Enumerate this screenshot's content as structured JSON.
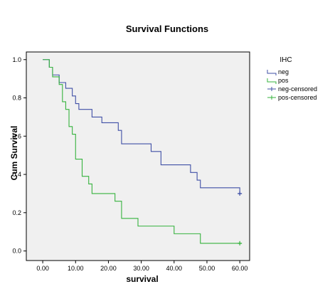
{
  "chart_data": {
    "type": "line",
    "step": true,
    "title": "Survival Functions",
    "xlabel": "survival",
    "ylabel": "Cum Survival",
    "xlim": [
      -5,
      63
    ],
    "ylim": [
      -0.05,
      1.04
    ],
    "xticks": [
      0,
      10,
      20,
      30,
      40,
      50,
      60
    ],
    "xtick_labels": [
      "0.00",
      "10.00",
      "20.00",
      "30.00",
      "40.00",
      "50.00",
      "60.00"
    ],
    "yticks": [
      0,
      0.2,
      0.4,
      0.6,
      0.8,
      1.0
    ],
    "ytick_labels": [
      "0.0",
      "0.2",
      "0.4",
      "0.6",
      "0.8",
      "1.0"
    ],
    "grid": false,
    "legend": {
      "title": "IHC",
      "placement": "right",
      "entries": [
        {
          "label": "neg",
          "kind": "line",
          "color": "#3f4fa6"
        },
        {
          "label": "pos",
          "kind": "line",
          "color": "#36b33e"
        },
        {
          "label": "neg-censored",
          "kind": "censor",
          "color": "#3f4fa6"
        },
        {
          "label": "pos-censored",
          "kind": "censor",
          "color": "#36b33e"
        }
      ]
    },
    "series": [
      {
        "name": "neg",
        "color": "#3f4fa6",
        "x": [
          2,
          3,
          5,
          7,
          9,
          10,
          11,
          15,
          18,
          23,
          24,
          33,
          36,
          45,
          47,
          48,
          60
        ],
        "y": [
          0.96,
          0.92,
          0.88,
          0.85,
          0.81,
          0.77,
          0.74,
          0.7,
          0.67,
          0.63,
          0.56,
          0.52,
          0.45,
          0.41,
          0.37,
          0.33,
          0.3
        ],
        "censored": [
          {
            "x": 60,
            "y": 0.3
          }
        ]
      },
      {
        "name": "pos",
        "color": "#36b33e",
        "x": [
          1,
          2,
          3,
          5,
          6,
          7,
          8,
          9,
          10,
          12,
          14,
          15,
          22,
          24,
          29,
          40,
          48,
          60
        ],
        "y": [
          1.0,
          0.96,
          0.91,
          0.87,
          0.78,
          0.74,
          0.65,
          0.61,
          0.48,
          0.39,
          0.35,
          0.3,
          0.26,
          0.17,
          0.13,
          0.09,
          0.04,
          0.04
        ],
        "censored": [
          {
            "x": 60,
            "y": 0.04
          }
        ]
      }
    ]
  }
}
